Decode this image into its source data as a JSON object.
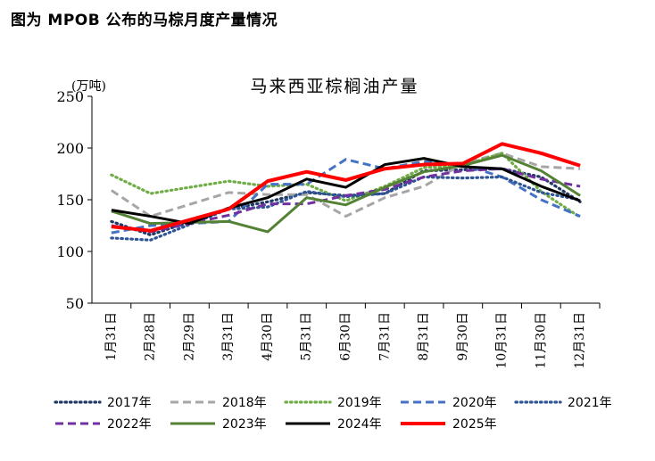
{
  "caption": "图为 MPOB 公布的马棕月度产量情况",
  "chart_data": {
    "type": "line",
    "title": "马来西亚棕榈油产量",
    "ylabel": "(万吨)",
    "xlabel": "",
    "ylim": [
      50,
      250
    ],
    "yticks": [
      50,
      100,
      150,
      200,
      250
    ],
    "categories": [
      "1月31日",
      "2月28日",
      "2月29日",
      "3月31日",
      "4月30日",
      "5月31日",
      "6月30日",
      "7月31日",
      "8月31日",
      "9月30日",
      "10月31日",
      "11月30日",
      "12月31日"
    ],
    "series": [
      {
        "name": "2017年",
        "color": "#1f3864",
        "dash": "dot",
        "values": [
          129,
          116,
          null,
          141,
          148,
          157,
          154,
          156,
          178,
          179,
          180,
          172,
          148
        ]
      },
      {
        "name": "2018年",
        "color": "#a6a6a6",
        "dash": "dash",
        "values": [
          159,
          134,
          null,
          157,
          155,
          155,
          134,
          152,
          163,
          185,
          195,
          182,
          180
        ]
      },
      {
        "name": "2019年",
        "color": "#70ad47",
        "dash": "dot",
        "values": [
          174,
          156,
          null,
          168,
          163,
          165,
          149,
          163,
          181,
          183,
          195,
          158,
          133
        ]
      },
      {
        "name": "2020年",
        "color": "#4472c4",
        "dash": "dash",
        "values": [
          118,
          125,
          null,
          129,
          165,
          165,
          189,
          180,
          187,
          184,
          172,
          150,
          134
        ]
      },
      {
        "name": "2021年",
        "color": "#2f5597",
        "dash": "dot",
        "values": [
          113,
          111,
          null,
          141,
          143,
          158,
          153,
          156,
          172,
          171,
          172,
          157,
          150
        ]
      },
      {
        "name": "2022年",
        "color": "#7030a0",
        "dash": "dash",
        "values": [
          125,
          119,
          null,
          135,
          146,
          146,
          154,
          160,
          172,
          178,
          180,
          170,
          163
        ]
      },
      {
        "name": "2023年",
        "color": "#548235",
        "dash": "solid",
        "values": [
          139,
          127,
          null,
          129,
          119,
          152,
          145,
          162,
          177,
          183,
          193,
          178,
          154
        ]
      },
      {
        "name": "2024年",
        "color": "#000000",
        "dash": "solid",
        "values": [
          140,
          134,
          127,
          142,
          152,
          170,
          162,
          184,
          190,
          182,
          180,
          163,
          149
        ]
      },
      {
        "name": "2025年",
        "color": "#ff0000",
        "dash": "solid",
        "values": [
          124,
          120,
          null,
          141,
          168,
          177,
          169,
          180,
          184,
          185,
          204,
          195,
          183
        ]
      }
    ]
  }
}
